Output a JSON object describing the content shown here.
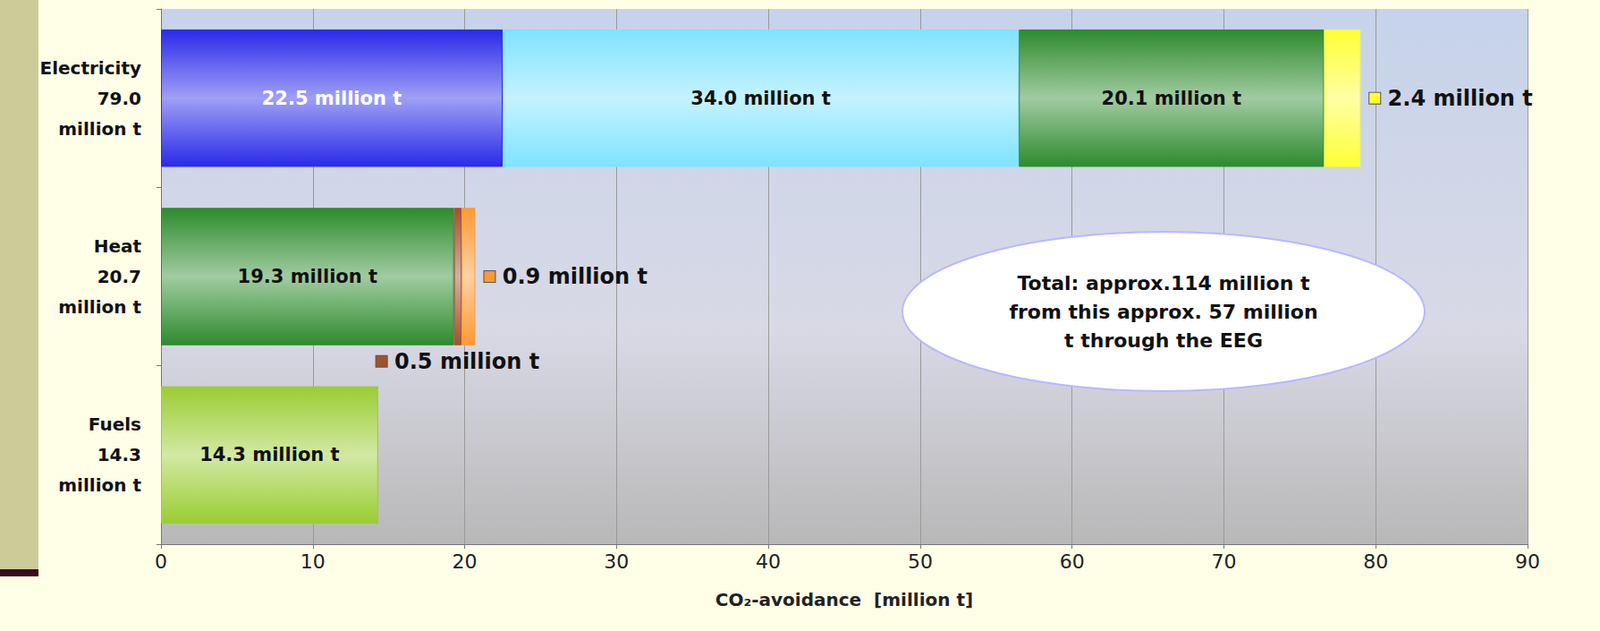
{
  "chart_data": {
    "type": "bar",
    "orientation": "horizontal",
    "stacked": true,
    "data_labels": true,
    "grid": true,
    "categories": [
      "Electricity\n79.0\nmillion t",
      "Heat\n20.7\nmillion t",
      "Fuels\n14.3\nmillion t"
    ],
    "series": [
      {
        "color": "#2a2ae8",
        "values": [
          22.5,
          null,
          null
        ],
        "value_labels": [
          "22.5 million t",
          null,
          null
        ]
      },
      {
        "color": "#7fe3ff",
        "values": [
          34.0,
          null,
          null
        ],
        "value_labels": [
          "34.0 million t",
          null,
          null
        ]
      },
      {
        "color": "#2e8b2e",
        "values": [
          20.1,
          19.3,
          null
        ],
        "value_labels": [
          "20.1 million t",
          "19.3 million t",
          null
        ]
      },
      {
        "color": "#a0522d",
        "values": [
          null,
          0.5,
          null
        ],
        "value_labels": [
          null,
          "0.5 million t",
          null
        ]
      },
      {
        "color": "#ff9933",
        "values": [
          null,
          0.9,
          null
        ],
        "value_labels": [
          null,
          "0.9 million t",
          null
        ]
      },
      {
        "color": "#ffff33",
        "values": [
          2.4,
          null,
          null
        ],
        "value_labels": [
          "2.4 million t",
          null,
          null
        ]
      },
      {
        "color": "#9acd32",
        "values": [
          null,
          null,
          14.3
        ],
        "value_labels": [
          null,
          null,
          "14.3 million t"
        ]
      }
    ],
    "xlabel": "CO₂-avoidance  [million t]",
    "xlim": [
      0,
      90
    ],
    "xticks": [
      0,
      10,
      20,
      30,
      40,
      50,
      60,
      70,
      80,
      90
    ],
    "annotations": [
      {
        "text": "Total: approx.114 million t\nfrom this approx. 57 million\nt through the EEG"
      }
    ]
  }
}
